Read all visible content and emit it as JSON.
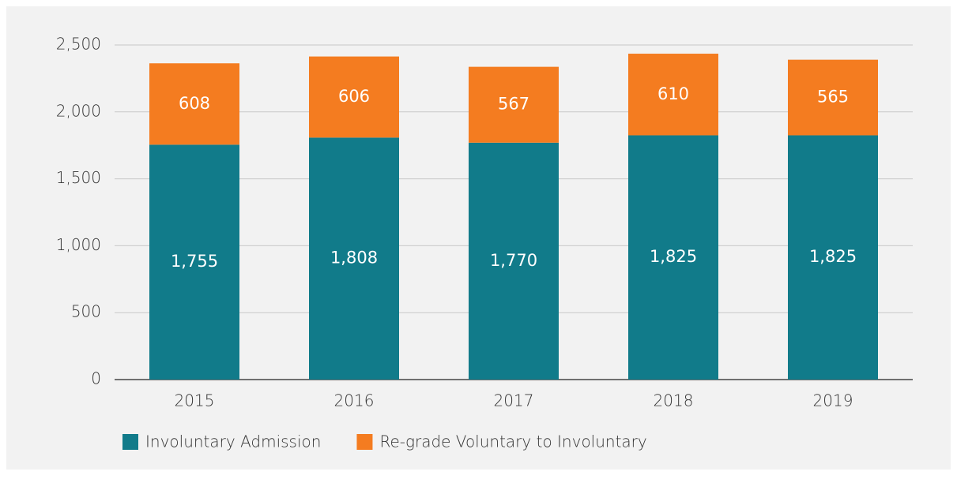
{
  "chart_data": {
    "type": "stacked_bar",
    "categories": [
      "2015",
      "2016",
      "2017",
      "2018",
      "2019"
    ],
    "series": [
      {
        "name": "Involuntary Admission",
        "color": "#117b8a",
        "values": [
          1755,
          1808,
          1770,
          1825,
          1825
        ],
        "value_labels": [
          "1,755",
          "1,808",
          "1,770",
          "1,825",
          "1,825"
        ]
      },
      {
        "name": "Re-grade Voluntary to Involuntary",
        "color": "#f47c20",
        "values": [
          608,
          606,
          567,
          610,
          565
        ]
      }
    ],
    "ylim": [
      0,
      2500
    ],
    "yticks": [
      0,
      500,
      {
        "value": 1000,
        "label": "1,000"
      },
      {
        "value": 1500,
        "label": "1,500"
      },
      {
        "value": 2000,
        "label": "2,000"
      },
      {
        "value": 2500,
        "label": "2,500"
      }
    ],
    "grid": true,
    "legend": "bottom"
  }
}
